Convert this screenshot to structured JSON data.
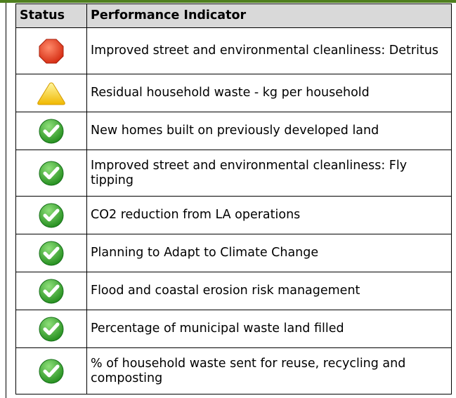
{
  "table": {
    "header": [
      "Status",
      "Performance Indicator"
    ],
    "rows": [
      "Improved street and environmental cleanliness: Detritus",
      "Residual household waste - kg per household",
      "New homes built on previously developed land",
      "Improved street and environmental cleanliness: Fly tipping",
      "CO2 reduction from LA operations",
      "Planning to Adapt to Climate Change",
      "Flood and coastal erosion risk management",
      "Percentage of municipal waste land filled",
      "% of household waste sent for reuse, recycling and composting"
    ]
  }
}
